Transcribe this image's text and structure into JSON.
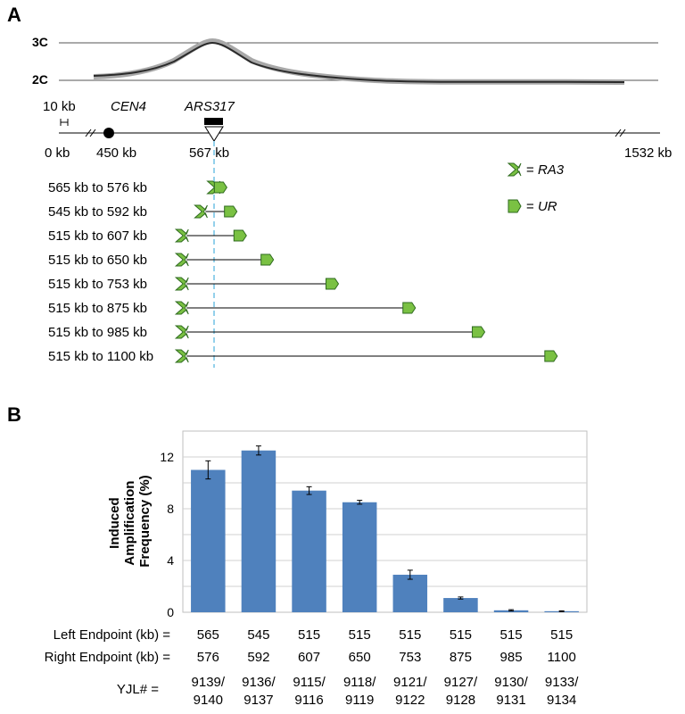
{
  "panel_a": {
    "label": "A",
    "profile_axis_labels": [
      "3C",
      "2C"
    ],
    "scale_bar_label": "10 kb",
    "centromere_label": "CEN4",
    "ars_label": "ARS317",
    "chromosome_ticks": [
      "0 kb",
      "450 kb",
      "567 kb",
      "1532 kb"
    ],
    "legend": [
      {
        "symbol": "RA3-icon",
        "text": "= ",
        "name": "RA3"
      },
      {
        "symbol": "UR-icon",
        "text": "= ",
        "name": "UR"
      }
    ],
    "constructs": [
      {
        "label": "565 kb to 576 kb",
        "left_kb": 565,
        "right_kb": 576
      },
      {
        "label": "545 kb to 592 kb",
        "left_kb": 545,
        "right_kb": 592
      },
      {
        "label": "515 kb to 607 kb",
        "left_kb": 515,
        "right_kb": 607
      },
      {
        "label": "515 kb to 650 kb",
        "left_kb": 515,
        "right_kb": 650
      },
      {
        "label": "515 kb to 753 kb",
        "left_kb": 515,
        "right_kb": 753
      },
      {
        "label": "515 kb to 875 kb",
        "left_kb": 515,
        "right_kb": 875
      },
      {
        "label": "515 kb to 985 kb",
        "left_kb": 515,
        "right_kb": 985
      },
      {
        "label": "515 kb to 1100 kb",
        "left_kb": 515,
        "right_kb": 1100
      }
    ],
    "colors": {
      "cassette": "#7ac143",
      "cassette_stroke": "#2f6b1f",
      "guide_line": "#5bb8e0"
    }
  },
  "panel_b": {
    "label": "B"
  },
  "chart_data": {
    "type": "bar",
    "title": "",
    "ylabel": "Induced Amplification Frequency (%)",
    "ylabel_lines": [
      "Induced",
      "Amplification",
      "Frequency (%)"
    ],
    "ylim": [
      0,
      14
    ],
    "yticks": [
      0,
      4,
      8,
      12
    ],
    "grid": true,
    "bar_color": "#4f81bd",
    "categories": [
      "565-576",
      "545-592",
      "515-607",
      "515-650",
      "515-753",
      "515-875",
      "515-985",
      "515-1100"
    ],
    "values": [
      11.0,
      12.5,
      9.4,
      8.5,
      2.9,
      1.1,
      0.15,
      0.08
    ],
    "errors": [
      0.7,
      0.35,
      0.3,
      0.15,
      0.35,
      0.08,
      0.05,
      0.03
    ],
    "table_rows": [
      {
        "label": "Left Endpoint (kb) =",
        "values": [
          "565",
          "545",
          "515",
          "515",
          "515",
          "515",
          "515",
          "515"
        ]
      },
      {
        "label": "Right Endpoint (kb) =",
        "values": [
          "576",
          "592",
          "607",
          "650",
          "753",
          "875",
          "985",
          "1100"
        ]
      }
    ],
    "yjl_label": "YJL# =",
    "yjl_values": [
      [
        "9139/",
        "9140"
      ],
      [
        "9136/",
        "9137"
      ],
      [
        "9115/",
        "9116"
      ],
      [
        "9118/",
        "9119"
      ],
      [
        "9121/",
        "9122"
      ],
      [
        "9127/",
        "9128"
      ],
      [
        "9130/",
        "9131"
      ],
      [
        "9133/",
        "9134"
      ]
    ]
  }
}
